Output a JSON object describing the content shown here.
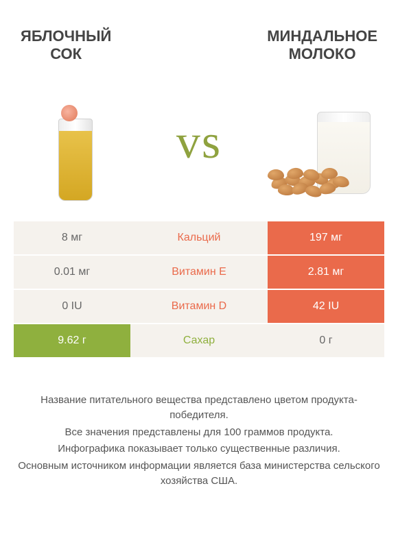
{
  "header": {
    "left_title": "Яблочный\nсок",
    "right_title": "Миндальное\nмолоко"
  },
  "vs_text": "vs",
  "colors": {
    "left_winner": "#8fb03e",
    "right_winner": "#ea6a4b",
    "neutral_bg": "#f5f2ed",
    "mid_label": "#ea6a4b",
    "title_text": "#444444",
    "footer_text": "#555555",
    "background": "#ffffff"
  },
  "fonts": {
    "title_size": 22,
    "vs_size": 70,
    "table_size": 16,
    "footer_size": 15
  },
  "table": {
    "type": "comparison-bars",
    "rows": [
      {
        "label": "Кальций",
        "left": "8 мг",
        "right": "197 мг",
        "winner": "right"
      },
      {
        "label": "Витамин E",
        "left": "0.01 мг",
        "right": "2.81 мг",
        "winner": "right"
      },
      {
        "label": "Витамин D",
        "left": "0 IU",
        "right": "42 IU",
        "winner": "right"
      },
      {
        "label": "Сахар",
        "left": "9.62 г",
        "right": "0 г",
        "winner": "left"
      }
    ]
  },
  "footer": {
    "lines": [
      "Название питательного вещества представлено цветом продукта-победителя.",
      "Все значения представлены для 100 граммов продукта.",
      "Инфографика показывает только существенные различия.",
      "Основным источником информации является база министерства сельского хозяйства США."
    ]
  }
}
